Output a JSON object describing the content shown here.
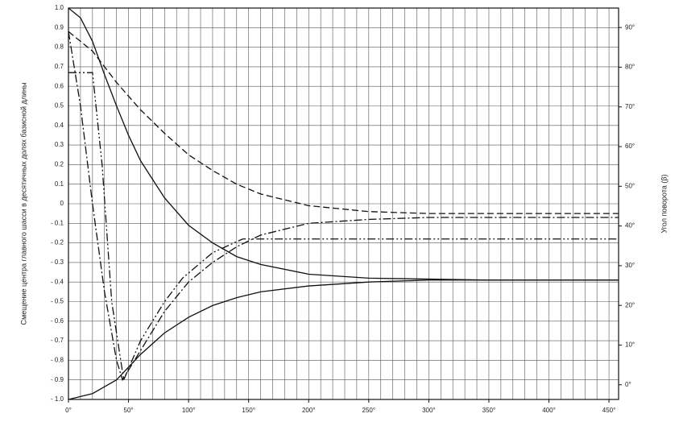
{
  "chart_data": {
    "type": "line",
    "ylabel": "Смещение центра главного шасси в десятичных долях базисной длины",
    "y2label": "Угол поворота (β)",
    "xlim": [
      0,
      458
    ],
    "ylim": [
      -1.0,
      1.0
    ],
    "y2lim": [
      -3.7,
      94.9
    ],
    "grid": true,
    "xticks": [
      {
        "value": 0,
        "label": "0°"
      },
      {
        "value": 50,
        "label": "50°"
      },
      {
        "value": 100,
        "label": "100°"
      },
      {
        "value": 150,
        "label": "150°"
      },
      {
        "value": 200,
        "label": "200°"
      },
      {
        "value": 250,
        "label": "250°"
      },
      {
        "value": 300,
        "label": "300°"
      },
      {
        "value": 350,
        "label": "350°"
      },
      {
        "value": 400,
        "label": "400°"
      },
      {
        "value": 450,
        "label": "450°"
      }
    ],
    "yticks": [
      {
        "value": 1.0,
        "label": "1.0"
      },
      0.9,
      0.8,
      0.7,
      0.6,
      0.5,
      0.4,
      0.3,
      0.2,
      0.1,
      0,
      {
        "value": -0.1,
        "label": "- 0.1"
      },
      {
        "value": -0.2,
        "label": "- 0.2"
      },
      {
        "value": -0.3,
        "label": "- 0.3"
      },
      {
        "value": -0.4,
        "label": "- 0.4"
      },
      {
        "value": -0.5,
        "label": "- 0.5"
      },
      {
        "value": -0.6,
        "label": "- 0.6"
      },
      {
        "value": -0.7,
        "label": "- 0.7"
      },
      {
        "value": -0.8,
        "label": "- 0.8"
      },
      {
        "value": -0.9,
        "label": "- 0.9"
      },
      {
        "value": -1.0,
        "label": "- 1.0"
      }
    ],
    "y2ticks": [
      {
        "value": 0,
        "label": "0°"
      },
      {
        "value": 10,
        "label": "10°"
      },
      {
        "value": 20,
        "label": "20°"
      },
      {
        "value": 30,
        "label": "30°"
      },
      {
        "value": 40,
        "label": "40°"
      },
      {
        "value": 50,
        "label": "50°"
      },
      {
        "value": 60,
        "label": "60°"
      },
      {
        "value": 70,
        "label": "70°"
      },
      {
        "value": 80,
        "label": "80°"
      },
      {
        "value": 90,
        "label": "90°"
      }
    ],
    "series": [
      {
        "color": "#111",
        "dash": "solid",
        "x": [
          0,
          10,
          20,
          30,
          40,
          50,
          60,
          80,
          100,
          120,
          140,
          160,
          200,
          250,
          300,
          350,
          400,
          458
        ],
        "values": [
          1.0,
          0.95,
          0.83,
          0.66,
          0.5,
          0.35,
          0.22,
          0.03,
          -0.11,
          -0.2,
          -0.27,
          -0.31,
          -0.36,
          -0.38,
          -0.385,
          -0.39,
          -0.39,
          -0.39
        ]
      },
      {
        "color": "#111",
        "dash": "solid",
        "x": [
          0,
          20,
          40,
          60,
          80,
          100,
          120,
          140,
          160,
          200,
          250,
          300,
          458
        ],
        "values": [
          -1.0,
          -0.97,
          -0.9,
          -0.77,
          -0.66,
          -0.58,
          -0.52,
          -0.48,
          -0.45,
          -0.42,
          -0.4,
          -0.39,
          -0.39
        ]
      },
      {
        "color": "#111",
        "dash": "dashed",
        "x": [
          0,
          20,
          40,
          60,
          80,
          100,
          120,
          140,
          160,
          200,
          250,
          300,
          458
        ],
        "values": [
          0.88,
          0.78,
          0.62,
          0.48,
          0.36,
          0.25,
          0.17,
          0.1,
          0.05,
          -0.01,
          -0.04,
          -0.05,
          -0.05
        ]
      },
      {
        "color": "#111",
        "dash": "dashdot",
        "x": [
          0,
          10,
          20,
          30,
          40,
          45,
          60,
          80,
          100,
          120,
          140,
          160,
          200,
          250,
          300,
          458
        ],
        "values": [
          0.88,
          0.5,
          0.0,
          -0.45,
          -0.8,
          -0.9,
          -0.75,
          -0.55,
          -0.4,
          -0.3,
          -0.22,
          -0.16,
          -0.1,
          -0.08,
          -0.07,
          -0.07
        ]
      },
      {
        "color": "#111",
        "dash": "dashdotdot",
        "x": [
          0,
          20,
          28,
          36,
          46,
          60,
          80,
          95,
          120,
          145,
          200,
          300,
          458
        ],
        "values": [
          0.67,
          0.67,
          0.2,
          -0.5,
          -0.9,
          -0.7,
          -0.5,
          -0.38,
          -0.25,
          -0.18,
          -0.18,
          -0.18,
          -0.18
        ]
      }
    ]
  }
}
